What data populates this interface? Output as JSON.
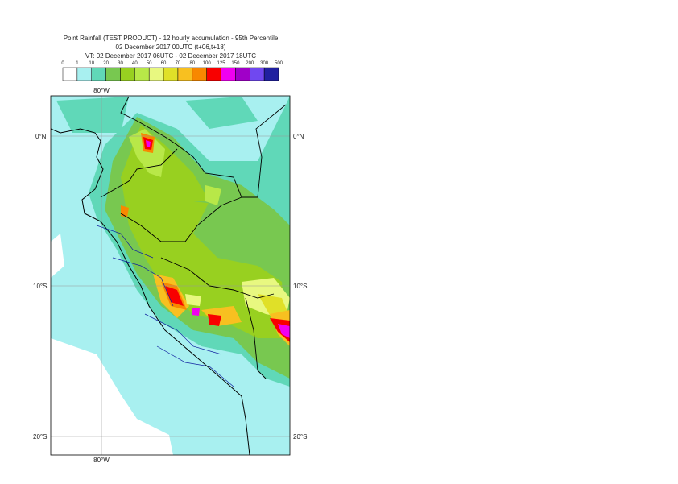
{
  "header": {
    "title": "Point Rainfall (TEST PRODUCT) - 12 hourly accumulation - 95th Percentile",
    "subtitle": "02 December 2017 00UTC (t+06,t+18)",
    "valid_time": "VT: 02 December 2017 06UTC - 02 December 2017 18UTC"
  },
  "legend": {
    "labels": [
      "0",
      "1",
      "10",
      "20",
      "30",
      "40",
      "50",
      "60",
      "70",
      "80",
      "100",
      "125",
      "150",
      "200",
      "300",
      "500"
    ],
    "colors": [
      "#ffffff",
      "#a8f0f0",
      "#60d8b8",
      "#78c850",
      "#98d020",
      "#b8e848",
      "#e8f880",
      "#e0e028",
      "#f8c020",
      "#f88800",
      "#f80000",
      "#f000f0",
      "#a000c8",
      "#7048f0",
      "#2020a0",
      "#100850"
    ]
  },
  "map": {
    "lat_labels": [
      "0°N",
      "10°S",
      "20°S"
    ],
    "lon_labels": [
      "80°W"
    ]
  }
}
